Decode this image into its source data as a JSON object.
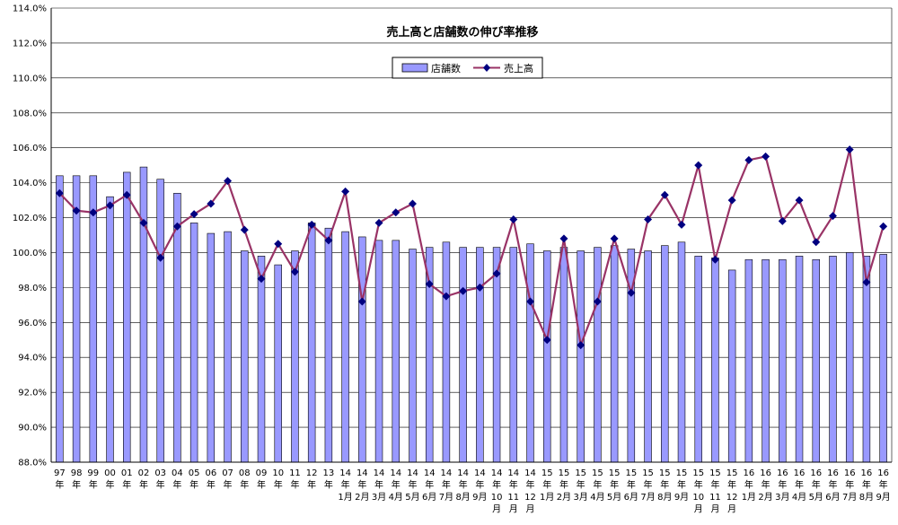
{
  "chart_data": {
    "type": "bar",
    "title": "売上高と店舗数の伸び率推移",
    "ylim": [
      88.0,
      114.0
    ],
    "y_ticks": [
      "88.0%",
      "90.0%",
      "92.0%",
      "94.0%",
      "96.0%",
      "98.0%",
      "100.0%",
      "102.0%",
      "104.0%",
      "106.0%",
      "108.0%",
      "110.0%",
      "112.0%",
      "114.0%"
    ],
    "grid": true,
    "legend_placement": "top-center",
    "colors": {
      "bar": "#9999ff",
      "bar_edge": "#000000",
      "line": "#993366",
      "marker": "#000080"
    },
    "categories": [
      [
        "97",
        "年"
      ],
      [
        "98",
        "年"
      ],
      [
        "99",
        "年"
      ],
      [
        "00",
        "年"
      ],
      [
        "01",
        "年"
      ],
      [
        "02",
        "年"
      ],
      [
        "03",
        "年"
      ],
      [
        "04",
        "年"
      ],
      [
        "05",
        "年"
      ],
      [
        "06",
        "年"
      ],
      [
        "07",
        "年"
      ],
      [
        "08",
        "年"
      ],
      [
        "09",
        "年"
      ],
      [
        "10",
        "年"
      ],
      [
        "11",
        "年"
      ],
      [
        "12",
        "年"
      ],
      [
        "13",
        "年"
      ],
      [
        "14",
        "年",
        "1月"
      ],
      [
        "14",
        "年",
        "2月"
      ],
      [
        "14",
        "年",
        "3月"
      ],
      [
        "14",
        "年",
        "4月"
      ],
      [
        "14",
        "年",
        "5月"
      ],
      [
        "14",
        "年",
        "6月"
      ],
      [
        "14",
        "年",
        "7月"
      ],
      [
        "14",
        "年",
        "8月"
      ],
      [
        "14",
        "年",
        "9月"
      ],
      [
        "14",
        "年",
        "10",
        "月"
      ],
      [
        "14",
        "年",
        "11",
        "月"
      ],
      [
        "14",
        "年",
        "12",
        "月"
      ],
      [
        "15",
        "年",
        "1月"
      ],
      [
        "15",
        "年",
        "2月"
      ],
      [
        "15",
        "年",
        "3月"
      ],
      [
        "15",
        "年",
        "4月"
      ],
      [
        "15",
        "年",
        "5月"
      ],
      [
        "15",
        "年",
        "6月"
      ],
      [
        "15",
        "年",
        "7月"
      ],
      [
        "15",
        "年",
        "8月"
      ],
      [
        "15",
        "年",
        "9月"
      ],
      [
        "15",
        "年",
        "10",
        "月"
      ],
      [
        "15",
        "年",
        "11",
        "月"
      ],
      [
        "15",
        "年",
        "12",
        "月"
      ],
      [
        "16",
        "年",
        "1月"
      ],
      [
        "16",
        "年",
        "2月"
      ],
      [
        "16",
        "年",
        "3月"
      ],
      [
        "16",
        "年",
        "4月"
      ],
      [
        "16",
        "年",
        "5月"
      ],
      [
        "16",
        "年",
        "6月"
      ],
      [
        "16",
        "年",
        "7月"
      ],
      [
        "16",
        "年",
        "8月"
      ],
      [
        "16",
        "年",
        "9月"
      ]
    ],
    "series": [
      {
        "name": "店舗数",
        "kind": "bar",
        "values": [
          104.4,
          104.4,
          104.4,
          103.2,
          104.6,
          104.9,
          104.2,
          103.4,
          101.7,
          101.1,
          101.2,
          100.1,
          99.8,
          99.3,
          100.1,
          101.7,
          101.4,
          101.2,
          100.9,
          100.7,
          100.7,
          100.2,
          100.3,
          100.6,
          100.3,
          100.3,
          100.3,
          100.3,
          100.5,
          100.1,
          100.3,
          100.1,
          100.3,
          100.4,
          100.2,
          100.1,
          100.4,
          100.6,
          99.8,
          99.7,
          99.0,
          99.6,
          99.6,
          99.6,
          99.8,
          99.6,
          99.8,
          100.0,
          99.8,
          99.9
        ]
      },
      {
        "name": "売上高",
        "kind": "line",
        "values": [
          103.4,
          102.4,
          102.3,
          102.7,
          103.3,
          101.7,
          99.7,
          101.5,
          102.2,
          102.8,
          104.1,
          101.3,
          98.5,
          100.5,
          98.9,
          101.6,
          100.7,
          103.5,
          97.2,
          101.7,
          102.3,
          102.8,
          98.2,
          97.5,
          97.8,
          98.0,
          98.8,
          101.9,
          97.2,
          95.0,
          100.8,
          94.7,
          97.2,
          100.8,
          97.7,
          101.9,
          103.3,
          101.6,
          105.0,
          99.6,
          103.0,
          105.3,
          105.5,
          101.8,
          103.0,
          100.6,
          102.1,
          105.9,
          98.3,
          101.5
        ]
      }
    ]
  }
}
